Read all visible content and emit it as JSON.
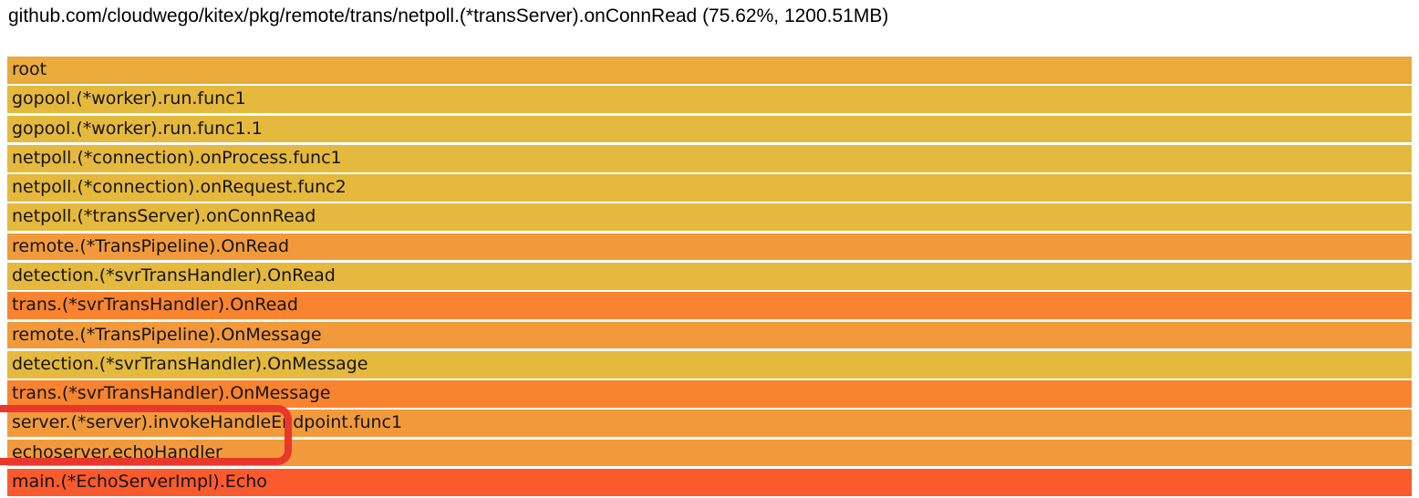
{
  "header": {
    "selected_info": "github.com/cloudwego/kitex/pkg/remote/trans/netpoll.(*transServer).onConnRead (75.62%, 1200.51MB)"
  },
  "flamegraph": {
    "frames": [
      {
        "label": "root",
        "color": "#e9ab3a"
      },
      {
        "label": "gopool.(*worker).run.func1",
        "color": "#e5b93d"
      },
      {
        "label": "gopool.(*worker).run.func1.1",
        "color": "#e5b93d"
      },
      {
        "label": "netpoll.(*connection).onProcess.func1",
        "color": "#e5b93d"
      },
      {
        "label": "netpoll.(*connection).onRequest.func2",
        "color": "#e5b93d"
      },
      {
        "label": "netpoll.(*transServer).onConnRead",
        "color": "#e5b93d"
      },
      {
        "label": "remote.(*TransPipeline).OnRead",
        "color": "#f29a3b"
      },
      {
        "label": "detection.(*svrTransHandler).OnRead",
        "color": "#e5b93d"
      },
      {
        "label": "trans.(*svrTransHandler).OnRead",
        "color": "#f8842f"
      },
      {
        "label": "remote.(*TransPipeline).OnMessage",
        "color": "#f29a3b"
      },
      {
        "label": "detection.(*svrTransHandler).OnMessage",
        "color": "#e5b93d"
      },
      {
        "label": "trans.(*svrTransHandler).OnMessage",
        "color": "#f8842f"
      },
      {
        "label": "server.(*server).invokeHandleEndpoint.func1",
        "color": "#f29a3b"
      },
      {
        "label": "echoserver.echoHandler",
        "color": "#f29a3b"
      },
      {
        "label": "main.(*EchoServerImpl).Echo",
        "color": "#fb5a2d"
      }
    ],
    "gap_color": "#ffffff",
    "text_color": "#141414"
  },
  "annotation": {
    "color": "#ea372b"
  },
  "chart_data": {
    "type": "bar",
    "subtype": "flamegraph-call-stack",
    "title": "github.com/cloudwego/kitex/pkg/remote/trans/netpoll.(*transServer).onConnRead (75.62%, 1200.51MB)",
    "orientation": "horizontal-stacked-rows",
    "categories": [
      "root",
      "gopool.(*worker).run.func1",
      "gopool.(*worker).run.func1.1",
      "netpoll.(*connection).onProcess.func1",
      "netpoll.(*connection).onRequest.func2",
      "netpoll.(*transServer).onConnRead",
      "remote.(*TransPipeline).OnRead",
      "detection.(*svrTransHandler).OnRead",
      "trans.(*svrTransHandler).OnRead",
      "remote.(*TransPipeline).OnMessage",
      "detection.(*svrTransHandler).OnMessage",
      "trans.(*svrTransHandler).OnMessage",
      "server.(*server).invokeHandleEndpoint.func1",
      "echoserver.echoHandler",
      "main.(*EchoServerImpl).Echo"
    ],
    "values": [
      100,
      100,
      100,
      100,
      100,
      100,
      100,
      100,
      100,
      100,
      100,
      100,
      100,
      100,
      100
    ],
    "xlabel": "",
    "ylabel": "",
    "legend": "none",
    "grid": false,
    "selected_frame": {
      "name": "github.com/cloudwego/kitex/pkg/remote/trans/netpoll.(*transServer).onConnRead",
      "percent": 75.62,
      "size_mb": 1200.51
    },
    "highlighted_frames": [
      "server.(*server).invokeHandleEndpoint.func1",
      "echoserver.echoHandler"
    ]
  }
}
